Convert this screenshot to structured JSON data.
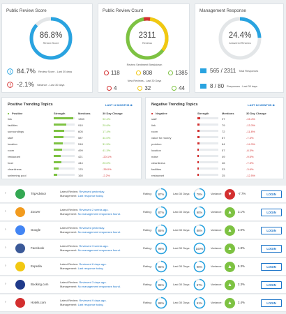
{
  "cards": {
    "score": {
      "title": "Public Review Score",
      "value": "86.8%",
      "sub": "Review Score",
      "ring_fraction": 0.868,
      "stat1_value": "84.7%",
      "stat1_label": "Review Score - Last 30 days",
      "stat2_value": "-2.1%",
      "stat2_label": "Variance - Last 30 days"
    },
    "count": {
      "title": "Public Review Count",
      "value": "2311",
      "sub": "Reviews",
      "breakdown_title": "Review Sentiment Breakdown",
      "pos": "118",
      "neu": "808",
      "neg": "1385",
      "new_title": "New Reviews - Last 30 Days",
      "new_neg": "4",
      "new_neu": "32",
      "new_pos": "44"
    },
    "mgmt": {
      "title": "Management Response",
      "value": "24.4%",
      "sub": "Answered Reviews",
      "ring_fraction": 0.244,
      "stat1_value": "565 / 2311",
      "stat1_label": "Total Responses",
      "stat2_value": "8 / 80",
      "stat2_label": "Responses - Last 30 days"
    }
  },
  "positive": {
    "title": "Positive Trending Topics",
    "link": "LAST 12 MONTHS ≑",
    "headers": [
      "Positive",
      "Strength",
      "Mentions",
      "30 Day Change"
    ],
    "rows": [
      {
        "topic": "link",
        "strength": 0.92,
        "mentions": "1353",
        "change": "92.4%"
      },
      {
        "topic": "facilities",
        "strength": 0.6,
        "mentions": "910",
        "change": "20.6%"
      },
      {
        "topic": "surroundings",
        "strength": 0.5,
        "mentions": "605",
        "change": "17.4%"
      },
      {
        "topic": "staff",
        "strength": 0.45,
        "mentions": "587",
        "change": "44.0%"
      },
      {
        "topic": "location",
        "strength": 0.42,
        "mentions": "518",
        "change": "31.5%"
      },
      {
        "topic": "room",
        "strength": 0.4,
        "mentions": "499",
        "change": "41.3%"
      },
      {
        "topic": "restaurant",
        "strength": 0.33,
        "mentions": "421",
        "change": "-20.1%"
      },
      {
        "topic": "food",
        "strength": 0.35,
        "mentions": "444",
        "change": "20.0%"
      },
      {
        "topic": "cleanliness",
        "strength": 0.22,
        "mentions": "170",
        "change": "-39.0%"
      },
      {
        "topic": "swimming pool",
        "strength": 0.18,
        "mentions": "160",
        "change": "-2.2%"
      }
    ]
  },
  "negative": {
    "title": "Negative Trending Topics",
    "link": "LAST 12 MONTHS ≑",
    "headers": [
      "Negative",
      "Strength",
      "Mentions",
      "30 Day Change"
    ],
    "rows": [
      {
        "topic": "staff",
        "strength": 0.12,
        "mentions": "97",
        "change": "-15.4%"
      },
      {
        "topic": "link",
        "strength": 0.1,
        "mentions": "79",
        "change": "-13.3%"
      },
      {
        "topic": "room",
        "strength": 0.1,
        "mentions": "72",
        "change": "-11.8%"
      },
      {
        "topic": "value for money",
        "strength": 0.09,
        "mentions": "67",
        "change": "-7.3%"
      },
      {
        "topic": "problem",
        "strength": 0.09,
        "mentions": "64",
        "change": "-14.3%"
      },
      {
        "topic": "location",
        "strength": 0.08,
        "mentions": "57",
        "change": "-8.3%"
      },
      {
        "topic": "noise",
        "strength": 0.07,
        "mentions": "49",
        "change": "-9.5%"
      },
      {
        "topic": "cleanliness",
        "strength": 0.07,
        "mentions": "46",
        "change": "-7.3%"
      },
      {
        "topic": "facilities",
        "strength": 0.06,
        "mentions": "33",
        "change": "-3.6%"
      },
      {
        "topic": "restaurant",
        "strength": 0.05,
        "mentions": "25",
        "change": "-12.5%"
      }
    ]
  },
  "sources": [
    {
      "name": "TripAdvisor",
      "latest": "Reviewed yesterday.",
      "mgmt": "Last response today.",
      "rating": "87%",
      "rating_f": 0.87,
      "last30": "79%",
      "last30_f": 0.79,
      "variance": "-7.7%",
      "up": false,
      "logo_color": "#34a853"
    },
    {
      "name": "Zoover",
      "latest": "Reviewed 2 weeks ago.",
      "mgmt": "No management responses found.",
      "rating": "87%",
      "rating_f": 0.87,
      "last30": "90%",
      "last30_f": 0.9,
      "variance": "3.1%",
      "up": true,
      "logo_color": "#f29b1e"
    },
    {
      "name": "Google",
      "latest": "Reviewed yesterday.",
      "mgmt": "No management responses found.",
      "rating": "86%",
      "rating_f": 0.86,
      "last30": "88%",
      "last30_f": 0.88,
      "variance": "2.0%",
      "up": true,
      "logo_color": "#4285f4"
    },
    {
      "name": "Facebook",
      "latest": "Reviewed 3 weeks ago.",
      "mgmt": "No management responses found.",
      "rating": "98%",
      "rating_f": 0.98,
      "last30": "100%",
      "last30_f": 1.0,
      "variance": "1.8%",
      "up": true,
      "logo_color": "#3b5998"
    },
    {
      "name": "Expedia",
      "latest": "Reviewed 6 days ago.",
      "mgmt": "Last response today.",
      "rating": "85%",
      "rating_f": 0.85,
      "last30": "90%",
      "last30_f": 0.9,
      "variance": "5.3%",
      "up": true,
      "logo_color": "#f2c811"
    },
    {
      "name": "Booking.com",
      "latest": "Reviewed 3 days ago.",
      "mgmt": "No management responses found.",
      "rating": "85%",
      "rating_f": 0.85,
      "last30": "87%",
      "last30_f": 0.87,
      "variance": "2.3%",
      "up": true,
      "logo_color": "#1f3a8a"
    },
    {
      "name": "Hotels.com",
      "latest": "Reviewed 9 days ago.",
      "mgmt": "Last response today.",
      "rating": "88%",
      "rating_f": 0.88,
      "last30": "91%",
      "last30_f": 0.91,
      "variance": "2.4%",
      "up": true,
      "logo_color": "#d32f2f"
    }
  ],
  "labels": {
    "latest_review": "Latest Review:",
    "management": "Management:",
    "rating": "Rating:",
    "last30": "Last 30 Days:",
    "variance": "Variance:",
    "login": "LOGIN"
  },
  "colors": {
    "blue": "#29a3e0",
    "green": "#7dc242",
    "red": "#d32f2f",
    "yellow": "#f2c811",
    "link": "#1a73c8"
  }
}
